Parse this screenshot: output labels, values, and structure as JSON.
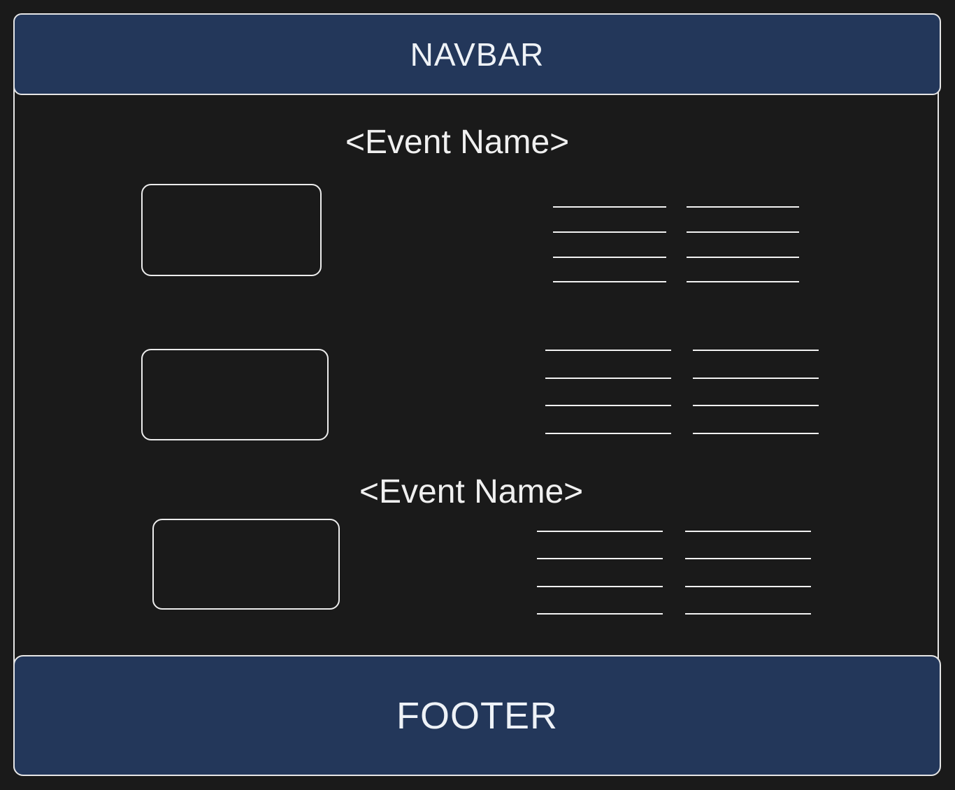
{
  "navbar": {
    "label": "NAVBAR"
  },
  "footer": {
    "label": "FOOTER"
  },
  "events": [
    {
      "title": "<Event Name>"
    },
    {
      "title": "<Event Name>"
    }
  ],
  "colors": {
    "background": "#1a1a1a",
    "bar_fill": "#23375a",
    "stroke": "#e6e6e6"
  }
}
